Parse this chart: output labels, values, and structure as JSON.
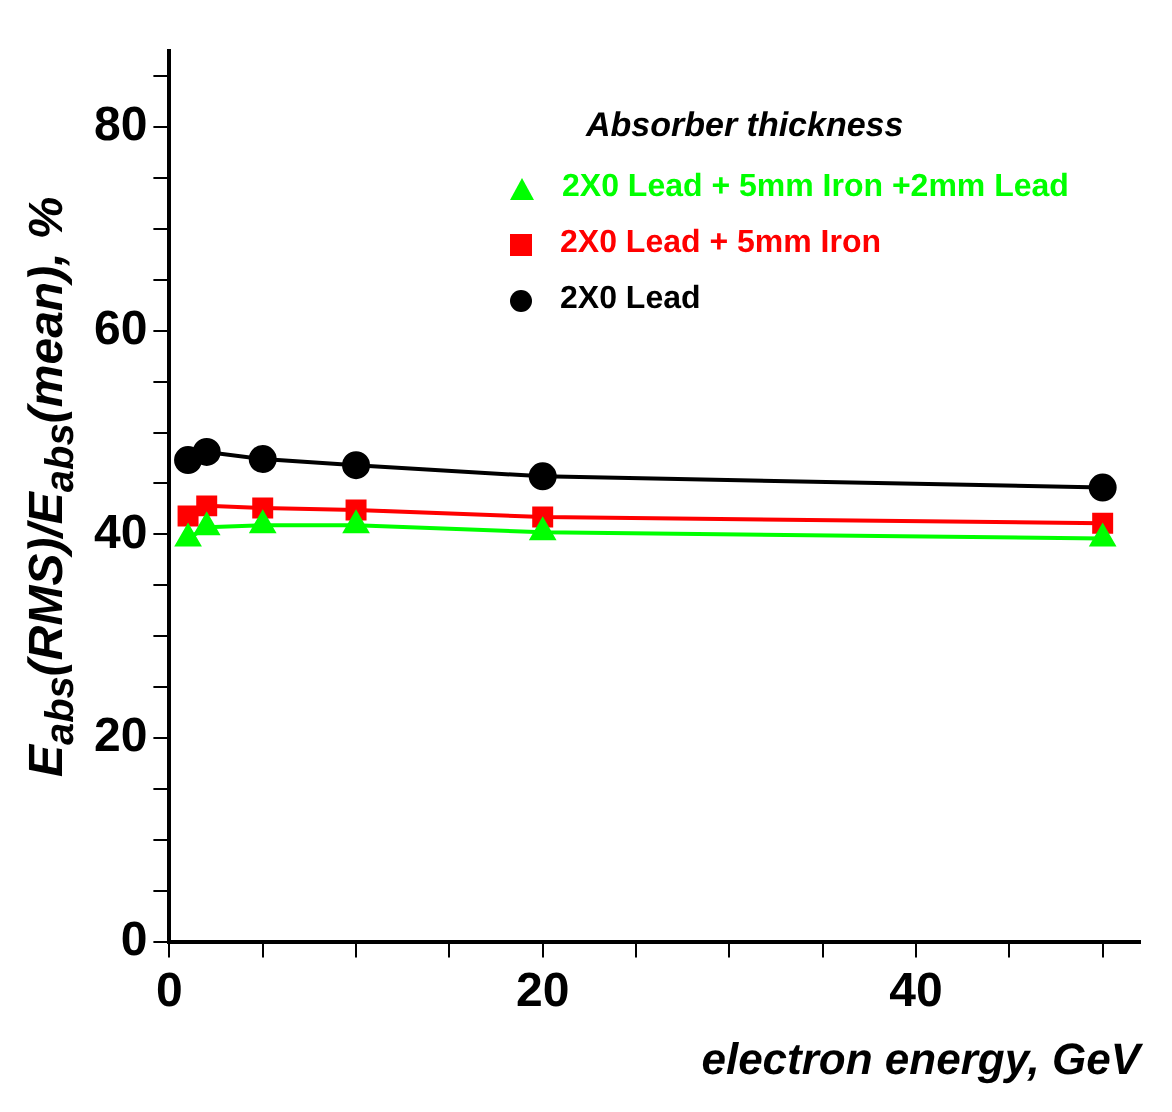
{
  "chart_data": {
    "type": "line",
    "xlabel": "electron energy, GeV",
    "ylabel": "E$_{abs}$(RMS)/E$_{abs}$(mean), %",
    "legend_title": "Absorber thickness",
    "x": [
      1,
      2,
      5,
      10,
      20,
      50
    ],
    "series": [
      {
        "name": "2X0 Lead + 5mm Iron +2mm Lead",
        "color": "#00ff00",
        "marker": "triangle",
        "values": [
          39.6,
          40.7,
          40.9,
          40.9,
          40.2,
          39.6
        ]
      },
      {
        "name": "2X0 Lead + 5mm Iron",
        "color": "#ff0000",
        "marker": "square",
        "values": [
          41.8,
          42.8,
          42.6,
          42.4,
          41.7,
          41.1
        ]
      },
      {
        "name": "2X0 Lead",
        "color": "#000000",
        "marker": "circle",
        "values": [
          47.3,
          48.1,
          47.4,
          46.8,
          45.7,
          44.6
        ]
      }
    ],
    "xlim": [
      0,
      52
    ],
    "xticks": [
      0,
      {
        "value": 5,
        "label": null
      },
      {
        "value": 10,
        "label": null
      },
      {
        "value": 15,
        "label": null
      },
      20,
      {
        "value": 25,
        "label": null
      },
      {
        "value": 30,
        "label": null
      },
      {
        "value": 35,
        "label": null
      },
      40,
      {
        "value": 45,
        "label": null
      },
      {
        "value": 50,
        "label": null
      }
    ],
    "ylim": [
      0,
      87.5
    ],
    "yticks": [
      0,
      {
        "value": 5,
        "label": null
      },
      {
        "value": 10,
        "label": null
      },
      {
        "value": 15,
        "label": null
      },
      20,
      {
        "value": 25,
        "label": null
      },
      {
        "value": 30,
        "label": null
      },
      {
        "value": 35,
        "label": null
      },
      40,
      {
        "value": 45,
        "label": null
      },
      {
        "value": 50,
        "label": null
      },
      {
        "value": 55,
        "label": null
      },
      60,
      {
        "value": 65,
        "label": null
      },
      {
        "value": 70,
        "label": null
      },
      {
        "value": 75,
        "label": null
      },
      80,
      {
        "value": 85,
        "label": null
      }
    ],
    "grid": false,
    "legend": "top right",
    "line_style": "solid"
  }
}
